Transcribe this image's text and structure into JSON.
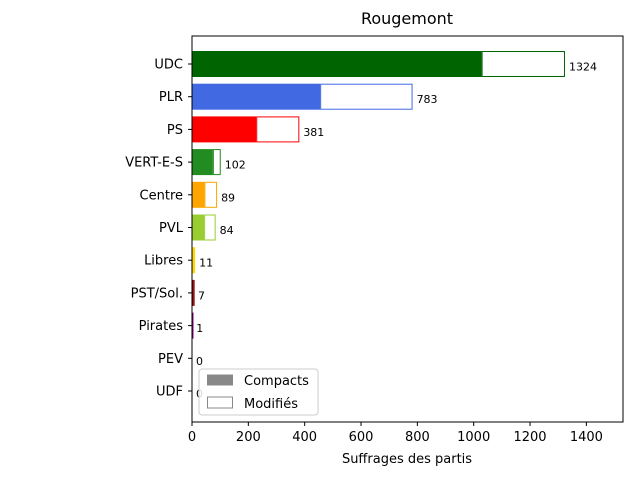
{
  "chart_data": {
    "type": "bar",
    "orientation": "horizontal",
    "title": "Rougemont",
    "xlabel": "Suffrages des partis",
    "ylabel": "",
    "xlim": [
      0,
      1530
    ],
    "xticks": [
      0,
      200,
      400,
      600,
      800,
      1000,
      1200,
      1400
    ],
    "grid": false,
    "legend": {
      "position": "bottom-left",
      "entries": [
        {
          "label": "Compacts",
          "style": "filled",
          "color": "#888888"
        },
        {
          "label": "Modifiés",
          "style": "outline",
          "color": "#888888"
        }
      ]
    },
    "categories": [
      "UDC",
      "PLR",
      "PS",
      "VERT-E-S",
      "Centre",
      "PVL",
      "Libres",
      "PST/Sol.",
      "Pirates",
      "PEV",
      "UDF"
    ],
    "series": [
      {
        "name": "Compacts",
        "values": [
          1028,
          455,
          228,
          74,
          44,
          43,
          5,
          4,
          0,
          0,
          0
        ]
      },
      {
        "name": "Modifiés",
        "values": [
          296,
          328,
          153,
          28,
          45,
          41,
          6,
          3,
          1,
          0,
          0
        ]
      }
    ],
    "totals": [
      1324,
      783,
      381,
      102,
      89,
      84,
      11,
      7,
      1,
      0,
      0
    ],
    "total_labels": [
      "1324",
      "783",
      "381",
      "102",
      "89",
      "84",
      "11",
      "7",
      "1",
      "0",
      "0"
    ],
    "colors": [
      "#006400",
      "#4169E1",
      "#FF0000",
      "#228B22",
      "#FFA500",
      "#9ACD32",
      "#FFD700",
      "#8B0000",
      "#800080",
      "#FFFF00",
      "#8B4513"
    ]
  }
}
